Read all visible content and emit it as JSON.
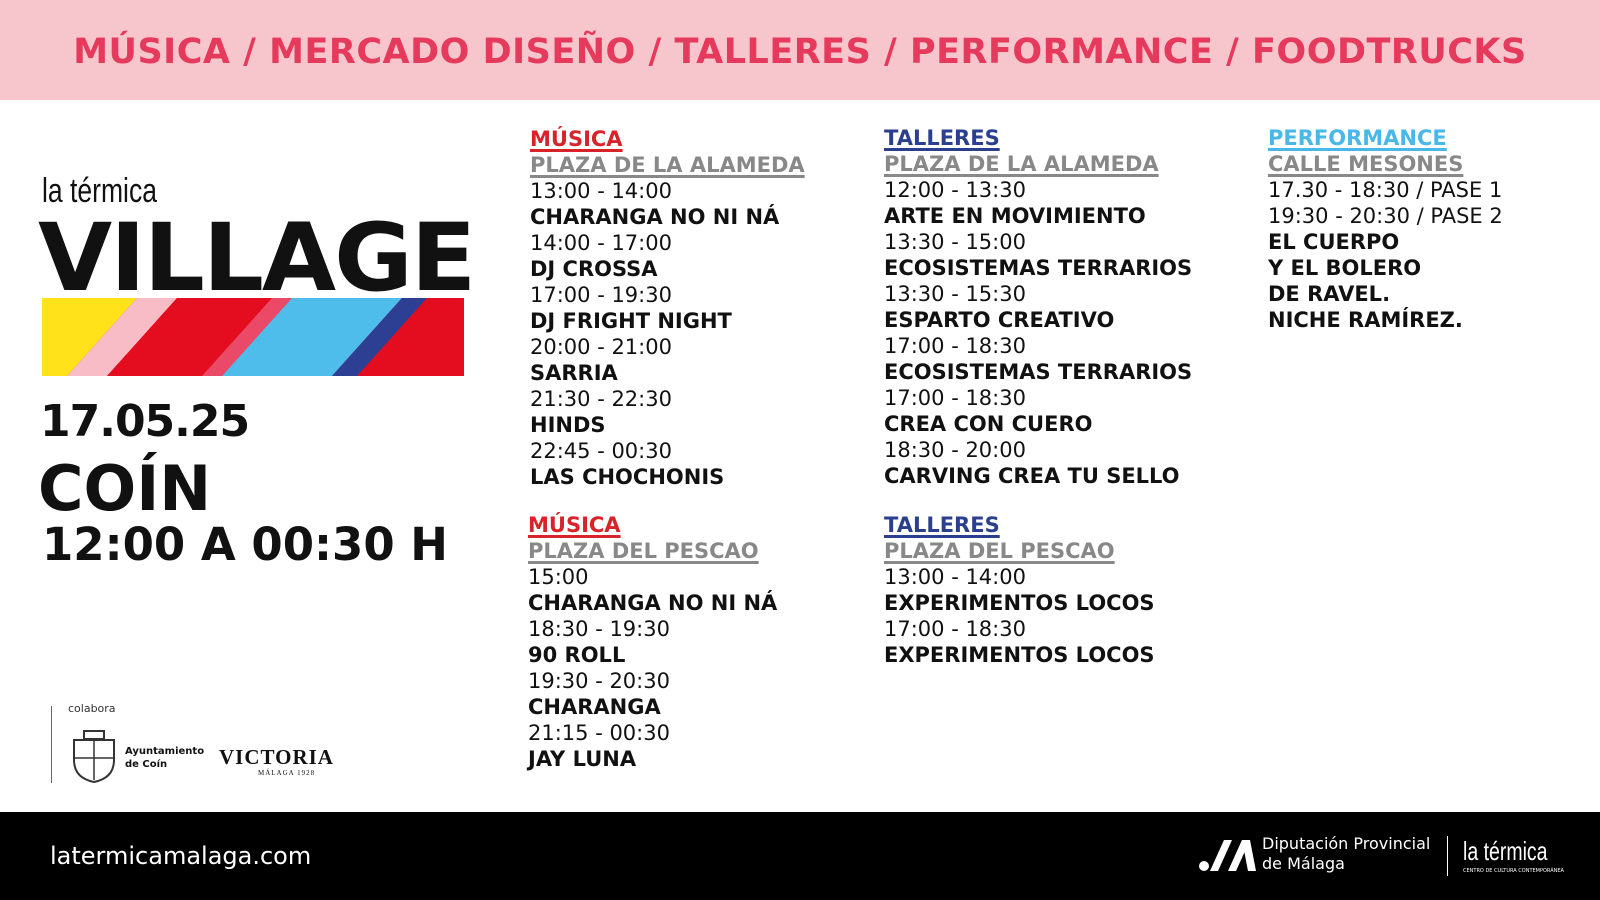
{
  "banner": "MÚSICA / MERCADO DISEÑO / TALLERES / PERFORMANCE / FOODTRUCKS",
  "event": {
    "brand": "la térmica",
    "title": "VILLAGE",
    "date": "17.05.25",
    "place": "COÍN",
    "hours": "12:00 A 00:30 H"
  },
  "sponsors": {
    "label": "colabora",
    "ayuntamiento": "Ayuntamiento de Coín",
    "victoria": "VICTORIA",
    "victoria_sub": "MÁLAGA 1928"
  },
  "sections": [
    {
      "heading": "MÚSICA",
      "venue": "PLAZA DE LA ALAMEDA",
      "items": [
        {
          "time": "13:00 - 14:00",
          "act": "CHARANGA NO NI NÁ"
        },
        {
          "time": "14:00 - 17:00",
          "act": "DJ CROSSA"
        },
        {
          "time": "17:00 - 19:30",
          "act": "DJ FRIGHT NIGHT"
        },
        {
          "time": "20:00 - 21:00",
          "act": "SARRIA"
        },
        {
          "time": "21:30 - 22:30",
          "act": "HINDS"
        },
        {
          "time": "22:45 - 00:30",
          "act": "LAS CHOCHONIS"
        }
      ]
    },
    {
      "heading": "MÚSICA",
      "venue": "PLAZA DEL PESCAO",
      "items": [
        {
          "time": "15:00",
          "act": "CHARANGA NO NI NÁ"
        },
        {
          "time": "18:30 - 19:30",
          "act": "90 ROLL"
        },
        {
          "time": "19:30 - 20:30",
          "act": "CHARANGA"
        },
        {
          "time": "21:15 - 00:30",
          "act": "JAY LUNA"
        }
      ]
    },
    {
      "heading": "TALLERES",
      "venue": "PLAZA DE LA ALAMEDA",
      "items": [
        {
          "time": "12:00 - 13:30",
          "act": "ARTE EN MOVIMIENTO"
        },
        {
          "time": "13:30 - 15:00",
          "act": "ECOSISTEMAS TERRARIOS"
        },
        {
          "time": "13:30 - 15:30",
          "act": "ESPARTO CREATIVO"
        },
        {
          "time": "17:00 - 18:30",
          "act": "ECOSISTEMAS TERRARIOS"
        },
        {
          "time": "17:00 - 18:30",
          "act": "CREA CON CUERO"
        },
        {
          "time": "18:30 - 20:00",
          "act": "CARVING CREA TU SELLO"
        }
      ]
    },
    {
      "heading": "TALLERES",
      "venue": "PLAZA DEL PESCAO",
      "items": [
        {
          "time": "13:00 - 14:00",
          "act": "EXPERIMENTOS LOCOS"
        },
        {
          "time": "17:00 - 18:30",
          "act": "EXPERIMENTOS LOCOS"
        }
      ]
    },
    {
      "heading": "PERFORMANCE",
      "venue": "CALLE MESONES",
      "times": [
        "17.30 - 18:30 / PASE 1",
        "19:30 - 20:30 / PASE 2"
      ],
      "act_lines": [
        "EL CUERPO",
        "Y EL BOLERO",
        "DE RAVEL.",
        "NICHE RAMÍREZ."
      ]
    }
  ],
  "footer": {
    "url": "latermicamalaga.com",
    "diputacion": "Diputación Provincial de Málaga",
    "logo": "la térmica",
    "logo_sub": "CENTRO DE CULTURA CONTEMPORÁNEA"
  }
}
